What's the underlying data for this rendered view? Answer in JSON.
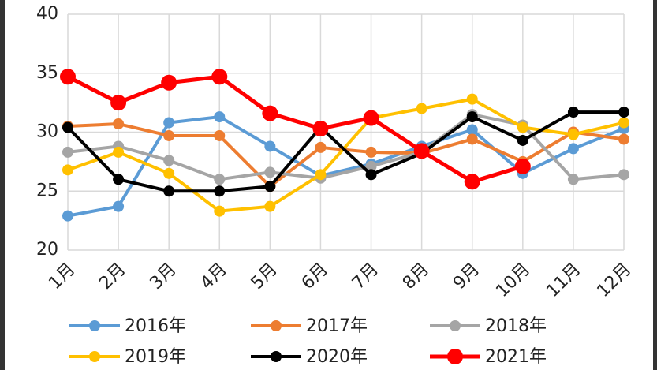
{
  "chart_data": {
    "type": "line",
    "categories": [
      "1月",
      "2月",
      "3月",
      "4月",
      "5月",
      "6月",
      "7月",
      "8月",
      "9月",
      "10月",
      "11月",
      "12月"
    ],
    "ylim": [
      20,
      40
    ],
    "yticks": [
      20,
      25,
      30,
      35,
      40
    ],
    "grid": true,
    "legend": "bottom",
    "series": [
      {
        "name": "2016年",
        "color": "#5b9bd5",
        "values": [
          22.9,
          23.7,
          30.8,
          31.3,
          28.8,
          26.3,
          27.3,
          28.8,
          30.2,
          26.5,
          28.6,
          30.3
        ]
      },
      {
        "name": "2017年",
        "color": "#ed7d31",
        "values": [
          30.5,
          30.7,
          29.7,
          29.7,
          25.4,
          28.7,
          28.3,
          28.2,
          29.4,
          27.5,
          30.0,
          29.4
        ]
      },
      {
        "name": "2018年",
        "color": "#a5a5a5",
        "values": [
          28.3,
          28.8,
          27.6,
          26.0,
          26.6,
          26.1,
          27.1,
          28.3,
          31.5,
          30.6,
          26.0,
          26.4
        ]
      },
      {
        "name": "2019年",
        "color": "#ffc000",
        "values": [
          26.8,
          28.3,
          26.5,
          23.3,
          23.7,
          26.4,
          31.2,
          32.0,
          32.8,
          30.4,
          29.8,
          30.8
        ]
      },
      {
        "name": "2020年",
        "color": "#000000",
        "values": [
          30.4,
          26.0,
          25.0,
          25.0,
          25.4,
          30.4,
          26.4,
          28.2,
          31.3,
          29.3,
          31.7,
          31.7
        ]
      },
      {
        "name": "2021年",
        "color": "#ff0000",
        "values": [
          34.7,
          32.5,
          34.2,
          34.7,
          31.6,
          30.3,
          31.2,
          28.4,
          25.8,
          27.1,
          null,
          null
        ]
      }
    ]
  }
}
